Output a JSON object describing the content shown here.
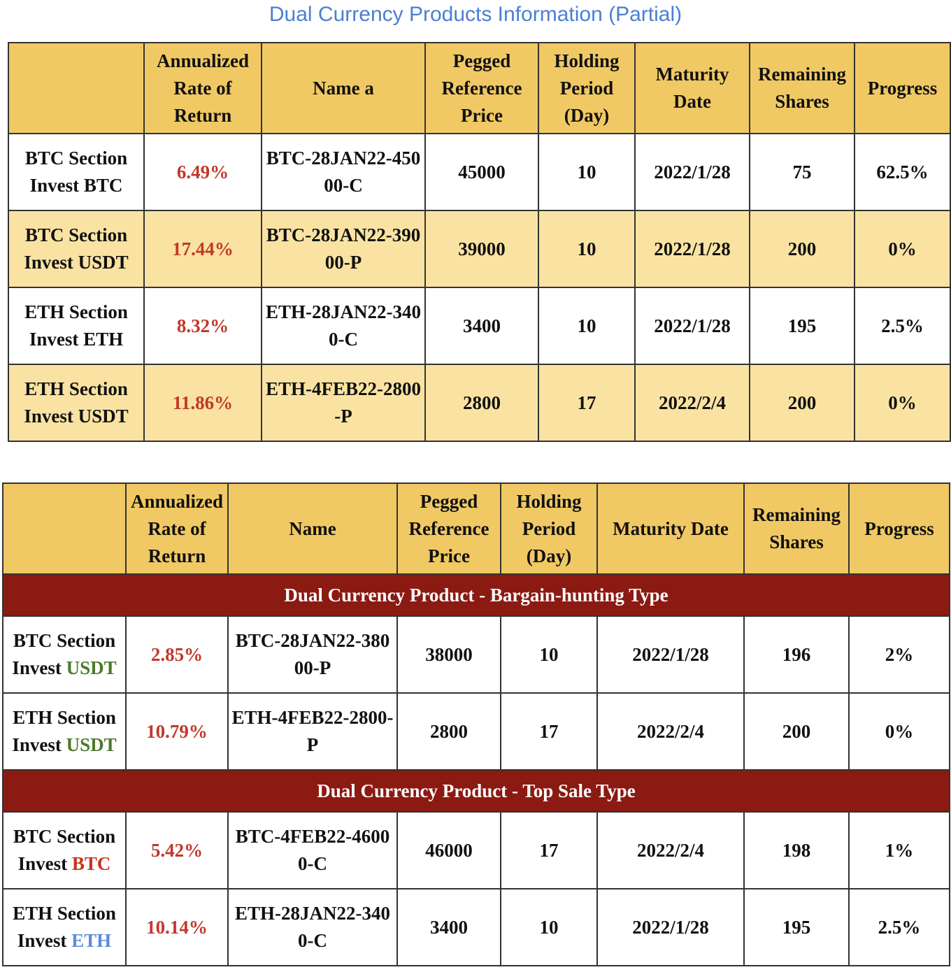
{
  "title": "Dual Currency Products Information (Partial)",
  "table1": {
    "header": [
      "Annualized Rate of Return",
      "Name a",
      "Pegged Reference Price",
      "Holding Period (Day)",
      "Maturity Date",
      "Remaining Shares",
      "Progress"
    ],
    "rows": [
      {
        "section": "BTC Section",
        "invest": "Invest BTC",
        "cells": [
          "6.49%",
          "BTC-28JAN22-45000-C",
          "45000",
          "10",
          "2022/1/28",
          "75",
          "62.5%"
        ]
      },
      {
        "section": "BTC Section",
        "invest": "Invest USDT",
        "cells": [
          "17.44%",
          "BTC-28JAN22-39000-P",
          "39000",
          "10",
          "2022/1/28",
          "200",
          "0%"
        ]
      },
      {
        "section": "ETH Section",
        "invest": "Invest ETH",
        "cells": [
          "8.32%",
          "ETH-28JAN22-3400-C",
          "3400",
          "10",
          "2022/1/28",
          "195",
          "2.5%"
        ]
      },
      {
        "section": "ETH Section",
        "invest": "Invest USDT",
        "cells": [
          "11.86%",
          "ETH-4FEB22-2800-P",
          "2800",
          "17",
          "2022/2/4",
          "200",
          "0%"
        ]
      }
    ]
  },
  "table2": {
    "header": [
      "Annualized Rate of Return",
      "Name",
      "Pegged Reference Price",
      "Holding Period (Day)",
      "Maturity Date",
      "Remaining Shares",
      "Progress"
    ],
    "groups": [
      {
        "title": "Dual Currency Product - Bargain-hunting Type",
        "rows": [
          {
            "section": "BTC Section",
            "invest": "Invest",
            "currency": "USDT",
            "currency_color": "#4e7a2c",
            "cells": [
              "2.85%",
              "BTC-28JAN22-38000-P",
              "38000",
              "10",
              "2022/1/28",
              "196",
              "2%"
            ]
          },
          {
            "section": "ETH Section",
            "invest": "Invest",
            "currency": "USDT",
            "currency_color": "#4e7a2c",
            "cells": [
              "10.79%",
              "ETH-4FEB22-2800-P",
              "2800",
              "17",
              "2022/2/4",
              "200",
              "0%"
            ]
          }
        ]
      },
      {
        "title": "Dual Currency Product - Top Sale Type",
        "rows": [
          {
            "section": "BTC Section",
            "invest": "Invest",
            "currency": "BTC",
            "currency_color": "#c8321e",
            "cells": [
              "5.42%",
              "BTC-4FEB22-46000-C",
              "46000",
              "17",
              "2022/2/4",
              "198",
              "1%"
            ]
          },
          {
            "section": "ETH Section",
            "invest": "Invest",
            "currency": "ETH",
            "currency_color": "#5b8dd6",
            "cells": [
              "10.14%",
              "ETH-28JAN22-3400-C",
              "3400",
              "10",
              "2022/1/28",
              "195",
              "2.5%"
            ]
          }
        ]
      }
    ]
  }
}
